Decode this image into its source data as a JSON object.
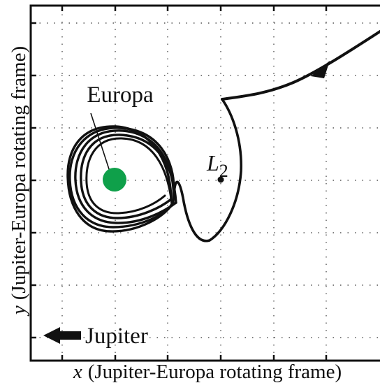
{
  "figure": {
    "body_label": "Europa",
    "lagrange_label": {
      "letter": "L",
      "subscript": "2"
    },
    "jupiter_label": "Jupiter",
    "x_axis_label": {
      "variable": "x",
      "text": "(Jupiter-Europa rotating frame)"
    },
    "y_axis_label": {
      "variable": "y",
      "text": "(Jupiter-Europa rotating frame)"
    }
  },
  "colors": {
    "europa": "#0fa04a",
    "trajectory": "#111111",
    "grid": "#555555",
    "frame": "#111111"
  }
}
